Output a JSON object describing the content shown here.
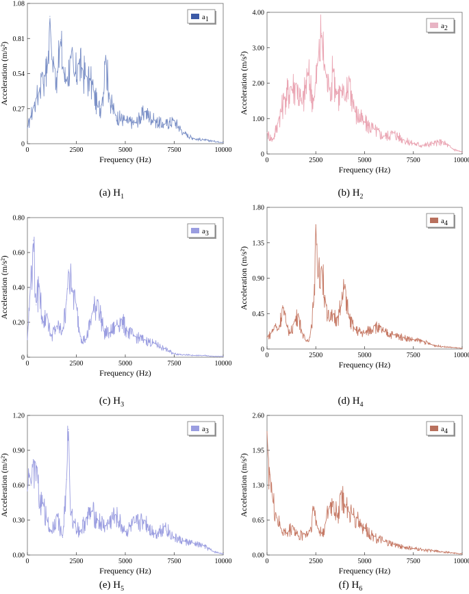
{
  "figure": {
    "panels": [
      {
        "id": "a",
        "caption_letter": "(a)",
        "caption_main": "H",
        "caption_sub": "1",
        "legend_main": "a",
        "legend_sub": "1",
        "color": "#7a8fc6",
        "legend_color": "#3b5aa6"
      },
      {
        "id": "b",
        "caption_letter": "(b)",
        "caption_main": "H",
        "caption_sub": "2",
        "legend_main": "a",
        "legend_sub": "2",
        "color": "#eaa5b3",
        "legend_color": "#e8b4c4"
      },
      {
        "id": "c",
        "caption_letter": "(c)",
        "caption_main": "H",
        "caption_sub": "3",
        "legend_main": "a",
        "legend_sub": "3",
        "color": "#9a9de0",
        "legend_color": "#9a9de0"
      },
      {
        "id": "d",
        "caption_letter": "(d)",
        "caption_main": "H",
        "caption_sub": "4",
        "legend_main": "a",
        "legend_sub": "4",
        "color": "#c67a66",
        "legend_color": "#b8705d"
      },
      {
        "id": "e",
        "caption_letter": "(e)",
        "caption_main": "H",
        "caption_sub": "5",
        "legend_main": "a",
        "legend_sub": "3",
        "color": "#9a9de0",
        "legend_color": "#9a9de0"
      },
      {
        "id": "f",
        "caption_letter": "(f)",
        "caption_main": "H",
        "caption_sub": "6",
        "legend_main": "a",
        "legend_sub": "4",
        "color": "#c67a66",
        "legend_color": "#b8705d"
      }
    ]
  },
  "chart_data": [
    {
      "type": "line",
      "panel": "(a)",
      "series_name": "a1",
      "xlabel": "Frequency (Hz)",
      "ylabel": "Acceleration (m/s²)",
      "xlim": [
        0,
        10000
      ],
      "ylim": [
        0,
        1.08
      ],
      "xticks": [
        "0",
        "2500",
        "5000",
        "7500",
        "10000"
      ],
      "yticks": [
        "0",
        "0.27",
        "0.54",
        "0.81",
        "1.08"
      ],
      "x": [
        0,
        150,
        300,
        450,
        600,
        750,
        900,
        1050,
        1150,
        1250,
        1400,
        1550,
        1700,
        1850,
        2000,
        2200,
        2400,
        2600,
        2800,
        3000,
        3200,
        3400,
        3600,
        3800,
        4000,
        4200,
        4500,
        5000,
        5500,
        6000,
        6500,
        7000,
        7500,
        8000,
        8500,
        9000,
        9500,
        10000
      ],
      "y": [
        0.12,
        0.2,
        0.28,
        0.35,
        0.4,
        0.55,
        0.52,
        0.62,
        0.98,
        0.65,
        0.58,
        0.55,
        0.8,
        0.55,
        0.48,
        0.68,
        0.52,
        0.62,
        0.58,
        0.52,
        0.5,
        0.4,
        0.28,
        0.3,
        0.68,
        0.35,
        0.22,
        0.18,
        0.16,
        0.25,
        0.18,
        0.15,
        0.18,
        0.08,
        0.04,
        0.03,
        0.02,
        0.01
      ]
    },
    {
      "type": "line",
      "panel": "(b)",
      "series_name": "a2",
      "xlabel": "Frequency (Hz)",
      "ylabel": "Acceleration (m/s²)",
      "xlim": [
        0,
        10000
      ],
      "ylim": [
        0,
        4.0
      ],
      "xticks": [
        "0",
        "2500",
        "5000",
        "7500",
        "10000"
      ],
      "yticks": [
        "0",
        "1.00",
        "2.00",
        "3.00",
        "4.00"
      ],
      "x": [
        0,
        300,
        600,
        900,
        1200,
        1500,
        1800,
        2100,
        2400,
        2600,
        2800,
        3000,
        3200,
        3400,
        3600,
        3800,
        4000,
        4200,
        4500,
        5000,
        5500,
        6000,
        6500,
        7000,
        7500,
        8000,
        8500,
        9000,
        9500,
        10000
      ],
      "y": [
        0.6,
        0.4,
        1.0,
        1.6,
        1.9,
        2.0,
        1.4,
        2.3,
        1.5,
        2.6,
        3.4,
        2.3,
        1.8,
        2.4,
        1.7,
        1.8,
        1.5,
        2.2,
        1.2,
        0.9,
        0.7,
        0.5,
        0.6,
        0.4,
        0.3,
        0.25,
        0.3,
        0.35,
        0.15,
        0.05
      ]
    },
    {
      "type": "line",
      "panel": "(c)",
      "series_name": "a3",
      "xlabel": "Frequency (Hz)",
      "ylabel": "Acceleration (m/s²)",
      "xlim": [
        0,
        10000
      ],
      "ylim": [
        0,
        0.8
      ],
      "xticks": [
        "0",
        "2500",
        "5000",
        "7500",
        "10000"
      ],
      "yticks": [
        "0",
        "0.20",
        "0.40",
        "0.60",
        "0.80"
      ],
      "x": [
        0,
        150,
        300,
        450,
        600,
        800,
        1000,
        1200,
        1500,
        1800,
        2000,
        2100,
        2300,
        2500,
        2700,
        3000,
        3300,
        3600,
        3900,
        4200,
        4500,
        4800,
        5100,
        5500,
        6000,
        6500,
        7000,
        7500,
        8000,
        8500,
        9000,
        9500,
        10000
      ],
      "y": [
        0.1,
        0.4,
        0.67,
        0.3,
        0.42,
        0.2,
        0.25,
        0.12,
        0.18,
        0.15,
        0.33,
        0.5,
        0.38,
        0.3,
        0.12,
        0.1,
        0.25,
        0.33,
        0.15,
        0.14,
        0.18,
        0.22,
        0.15,
        0.12,
        0.1,
        0.08,
        0.05,
        0.02,
        0.015,
        0.01,
        0.01,
        0.005,
        0.005
      ]
    },
    {
      "type": "line",
      "panel": "(d)",
      "series_name": "a4",
      "xlabel": "Frequency (Hz)",
      "ylabel": "Acceleration (m/s²)",
      "xlim": [
        0,
        10000
      ],
      "ylim": [
        0,
        1.8
      ],
      "xticks": [
        "0",
        "2500",
        "5000",
        "7500",
        "10000"
      ],
      "yticks": [
        "0",
        "0.45",
        "0.90",
        "1.35",
        "1.80"
      ],
      "x": [
        0,
        200,
        400,
        600,
        800,
        1000,
        1200,
        1400,
        1600,
        1800,
        2000,
        2200,
        2400,
        2500,
        2600,
        2800,
        3000,
        3200,
        3400,
        3600,
        3800,
        4000,
        4200,
        4500,
        5000,
        5500,
        6000,
        6500,
        7000,
        7500,
        8000,
        8500,
        9000,
        9500,
        10000
      ],
      "y": [
        0.15,
        0.2,
        0.3,
        0.25,
        0.55,
        0.3,
        0.2,
        0.35,
        0.45,
        0.2,
        0.1,
        0.15,
        0.6,
        1.58,
        0.9,
        1.05,
        0.6,
        0.35,
        0.45,
        0.4,
        0.55,
        0.82,
        0.4,
        0.25,
        0.2,
        0.3,
        0.22,
        0.18,
        0.15,
        0.12,
        0.1,
        0.05,
        0.03,
        0.02,
        0.01
      ]
    },
    {
      "type": "line",
      "panel": "(e)",
      "series_name": "a3",
      "xlabel": "Frequency (Hz)",
      "ylabel": "Acceleration (m/s²)",
      "xlim": [
        0,
        10000
      ],
      "ylim": [
        0,
        1.2
      ],
      "xticks": [
        "0",
        "2500",
        "5000",
        "7500",
        "10000"
      ],
      "yticks": [
        "0.00",
        "0.30",
        "0.60",
        "0.90",
        "1.20"
      ],
      "x": [
        0,
        100,
        200,
        300,
        400,
        500,
        600,
        800,
        1000,
        1200,
        1500,
        1800,
        2000,
        2100,
        2200,
        2400,
        2700,
        3000,
        3300,
        3600,
        4000,
        4500,
        5000,
        5500,
        6000,
        6500,
        7000,
        7500,
        8000,
        8500,
        9000,
        9500,
        10000
      ],
      "y": [
        0.55,
        0.7,
        0.6,
        0.82,
        0.8,
        0.75,
        0.4,
        0.45,
        0.3,
        0.2,
        0.35,
        0.15,
        0.65,
        1.08,
        0.35,
        0.28,
        0.2,
        0.32,
        0.38,
        0.3,
        0.25,
        0.35,
        0.2,
        0.28,
        0.3,
        0.18,
        0.25,
        0.15,
        0.12,
        0.1,
        0.08,
        0.03,
        0.01
      ]
    },
    {
      "type": "line",
      "panel": "(f)",
      "series_name": "a4",
      "xlabel": "Frequency (Hz)",
      "ylabel": "Acceleration (m/s²)",
      "xlim": [
        0,
        10000
      ],
      "ylim": [
        0,
        2.6
      ],
      "xticks": [
        "0",
        "2500",
        "5000",
        "7500",
        "10000"
      ],
      "yticks": [
        "0.00",
        "0.65",
        "1.30",
        "1.95",
        "2.60"
      ],
      "x": [
        0,
        50,
        150,
        300,
        500,
        700,
        1000,
        1300,
        1600,
        1900,
        2200,
        2400,
        2600,
        2800,
        3000,
        3200,
        3400,
        3600,
        3800,
        4000,
        4200,
        4400,
        4600,
        5000,
        5500,
        6000,
        6500,
        7000,
        7500,
        8000,
        8500,
        9000,
        9500,
        10000
      ],
      "y": [
        2.3,
        1.9,
        1.5,
        1.0,
        0.7,
        0.5,
        0.4,
        0.55,
        0.35,
        0.4,
        0.45,
        0.9,
        0.5,
        0.4,
        0.6,
        0.9,
        1.0,
        0.7,
        1.2,
        0.9,
        0.8,
        0.75,
        0.7,
        0.5,
        0.35,
        0.25,
        0.2,
        0.15,
        0.12,
        0.1,
        0.08,
        0.06,
        0.04,
        0.02
      ]
    }
  ]
}
